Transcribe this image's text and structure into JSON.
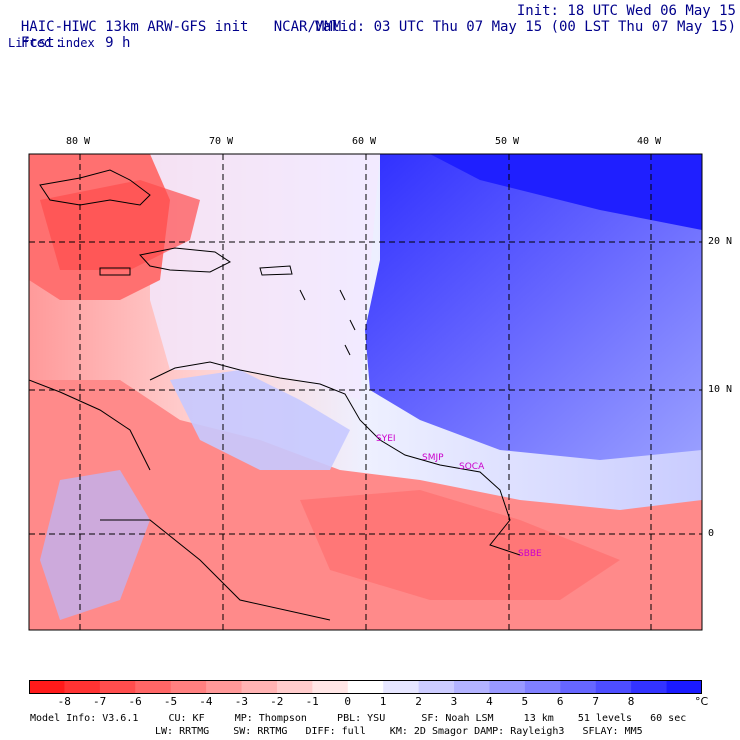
{
  "header": {
    "title": "HAIC-HIWC 13km ARW-GFS init",
    "org": "NCAR/MMM",
    "init": "Init: 18 UTC Wed 06 May 15",
    "fcst_label": "Fcst:",
    "fcst_value": "9 h",
    "valid": "Valid: 03 UTC Thu 07 May 15 (00 LST Thu 07 May 15)",
    "field": "Lifted index"
  },
  "map": {
    "lon_labels": [
      "80 W",
      "70 W",
      "60 W",
      "50 W",
      "40 W"
    ],
    "lat_labels": [
      "20 N",
      "10 N",
      "0"
    ],
    "city_labels": [
      "SYEI",
      "SMJP",
      "SOCA",
      "SBBE"
    ],
    "colors": {
      "gridline": "#000000",
      "coast": "#000000",
      "city": "#cc00cc"
    }
  },
  "colorbar": {
    "ticks": [
      "-8",
      "-7",
      "-6",
      "-5",
      "-4",
      "-3",
      "-2",
      "-1",
      "0",
      "1",
      "2",
      "3",
      "4",
      "5",
      "6",
      "7",
      "8"
    ],
    "unit": "°C",
    "colors": [
      "#ff1a1a",
      "#ff3333",
      "#ff4d4d",
      "#ff6666",
      "#ff8080",
      "#ff9999",
      "#ffb3b3",
      "#ffcccc",
      "#ffe6e6",
      "#ffffff",
      "#e6e6ff",
      "#ccccff",
      "#b3b3ff",
      "#9999ff",
      "#8080ff",
      "#6666ff",
      "#4d4dff",
      "#3333ff",
      "#1a1aff"
    ]
  },
  "footer": {
    "line1": "Model Info: V3.6.1     CU: KF     MP: Thompson     PBL: YSU      SF: Noah LSM     13 km    51 levels   60 sec",
    "line2": "LW: RRTMG    SW: RRTMG   DIFF: full    KM: 2D Smagor DAMP: Rayleigh3   SFLAY: MM5"
  }
}
